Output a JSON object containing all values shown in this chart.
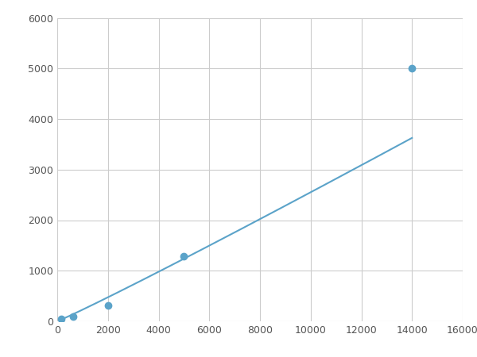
{
  "x_points": [
    156,
    625,
    2000,
    5000,
    14000
  ],
  "y_points": [
    50,
    100,
    310,
    1280,
    5000
  ],
  "line_color": "#5ba3c9",
  "marker_color": "#5ba3c9",
  "marker_size": 6,
  "line_width": 1.5,
  "xlim": [
    0,
    16000
  ],
  "ylim": [
    0,
    6000
  ],
  "xticks": [
    0,
    2000,
    4000,
    6000,
    8000,
    10000,
    12000,
    14000,
    16000
  ],
  "yticks": [
    0,
    1000,
    2000,
    3000,
    4000,
    5000,
    6000
  ],
  "grid_color": "#cccccc",
  "background_color": "#ffffff",
  "fig_background": "#ffffff"
}
